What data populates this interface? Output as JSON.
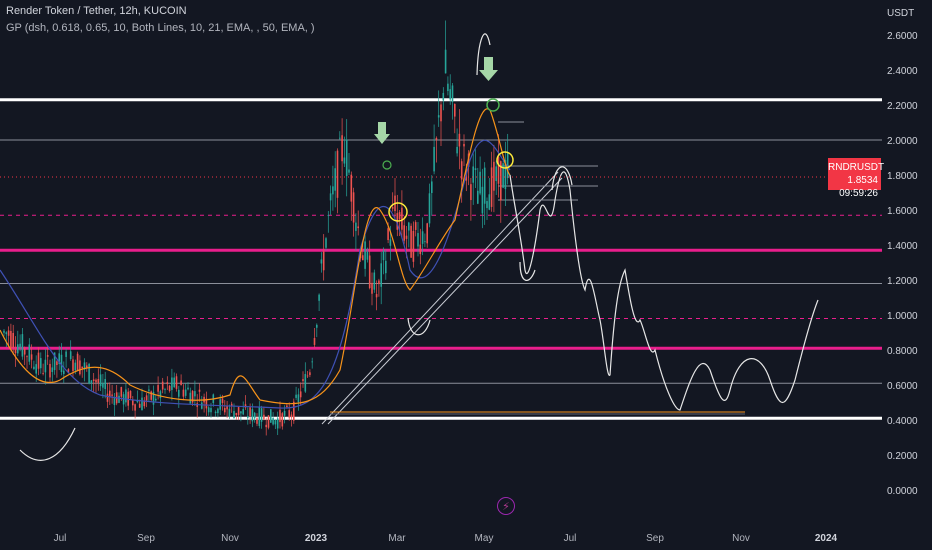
{
  "header": {
    "title": "Render Token / Tether, 12h, KUCOIN",
    "indicator": "GP (dsh, 0.618, 0.65, 10, Both Lines, 10, 21, EMA, , 50, EMA, )"
  },
  "price_axis": {
    "currency": "USDT",
    "ticks": [
      "2.6000",
      "2.4000",
      "2.2000",
      "2.0000",
      "1.8000",
      "1.6000",
      "1.4000",
      "1.2000",
      "1.0000",
      "0.8000",
      "0.6000",
      "0.4000",
      "0.2000",
      "0.0000"
    ]
  },
  "time_axis": {
    "ticks": [
      "Jul",
      "Sep",
      "Nov",
      "2023",
      "Mar",
      "May",
      "Jul",
      "Sep",
      "Nov",
      "2024"
    ]
  },
  "price_label": {
    "symbol": "RNDRUSDT",
    "price": "1.8534",
    "countdown": "09:59:26"
  },
  "colors": {
    "background": "#131722",
    "levels_white": "#ffffff",
    "levels_magenta": "#e91e8c",
    "price_tag": "#f23645",
    "ema_fast": "#f7931a",
    "ema_slow": "#3f51b5",
    "arrow": "#a5d6a7"
  },
  "icons": {
    "bolt": "lightning-bolt-icon",
    "arrow": "arrow-down-icon"
  },
  "chart_data": {
    "type": "line",
    "title": "",
    "xlabel": "",
    "ylabel": "",
    "ylim": [
      0,
      2.8
    ],
    "grid": false,
    "x_categories": [
      "Jul",
      "Sep",
      "Nov",
      "2023",
      "Mar",
      "May",
      "Jul",
      "Sep",
      "Nov",
      "2024"
    ],
    "levels": [
      {
        "value": 2.23,
        "style": "white-bold"
      },
      {
        "value": 2.0,
        "style": "gray"
      },
      {
        "value": 1.57,
        "style": "magenta-dashed"
      },
      {
        "value": 1.37,
        "style": "magenta-bold"
      },
      {
        "value": 1.18,
        "style": "gray"
      },
      {
        "value": 0.98,
        "style": "magenta-dashed"
      },
      {
        "value": 0.81,
        "style": "magenta-bold"
      },
      {
        "value": 0.61,
        "style": "gray"
      },
      {
        "value": 0.41,
        "style": "white-bold"
      }
    ],
    "last_price": 1.8534,
    "series": [
      {
        "x": [
          0.0,
          0.4,
          0.8,
          1.2,
          1.6,
          2.0,
          2.4,
          2.8,
          3.0,
          3.2,
          3.4,
          3.6,
          3.8,
          4.0,
          4.2,
          4.4,
          4.6,
          4.8,
          5.0,
          5.2,
          5.4,
          5.6,
          5.8,
          6.0
        ],
        "values": [
          0.9,
          0.7,
          0.75,
          0.55,
          0.5,
          0.6,
          0.5,
          0.44,
          0.42,
          0.4,
          0.45,
          0.7,
          1.5,
          2.0,
          1.4,
          1.1,
          1.6,
          1.4,
          1.5,
          2.4,
          1.9,
          1.7,
          1.75,
          1.85
        ]
      },
      {
        "x": [
          6.0,
          6.3,
          6.6,
          6.9,
          7.2,
          7.5,
          7.8,
          8.1,
          8.4,
          8.7,
          9.0,
          9.3,
          9.6
        ],
        "values": [
          1.85,
          1.6,
          1.2,
          1.75,
          1.3,
          0.7,
          1.2,
          0.75,
          0.5,
          0.72,
          0.55,
          0.8,
          0.48
        ]
      }
    ]
  }
}
